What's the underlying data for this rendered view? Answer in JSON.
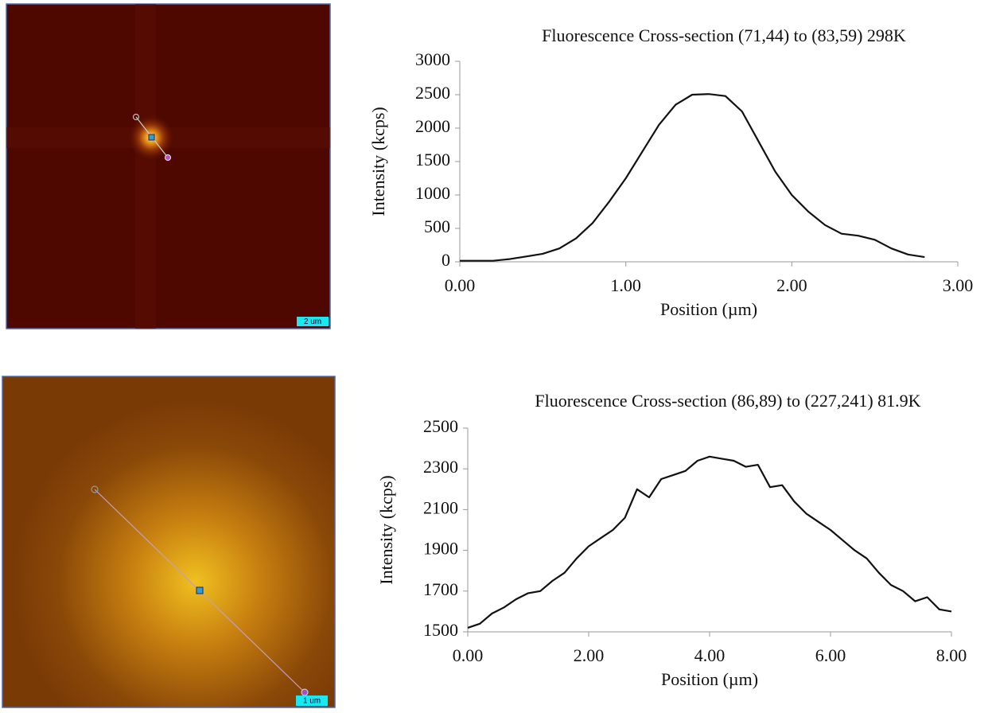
{
  "images": [
    {
      "scale_label": "2 um"
    },
    {
      "scale_label": "1 um"
    }
  ],
  "chart_data": [
    {
      "type": "line",
      "title": "Fluorescence Cross-section (71,44) to (83,59)  298K",
      "x_label": "Position  (µm)",
      "y_label": "Intensity  (kcps)",
      "x": [
        0,
        0.1,
        0.2,
        0.3,
        0.4,
        0.5,
        0.6,
        0.7,
        0.8,
        0.9,
        1.0,
        1.1,
        1.2,
        1.3,
        1.4,
        1.5,
        1.6,
        1.7,
        1.8,
        1.9,
        2.0,
        2.1,
        2.2,
        2.3,
        2.4,
        2.5,
        2.6,
        2.7,
        2.8
      ],
      "series": [
        {
          "name": "Intensity",
          "color": "#111111",
          "values": [
            15,
            15,
            15,
            40,
            80,
            120,
            200,
            350,
            580,
            900,
            1250,
            1650,
            2050,
            2350,
            2500,
            2510,
            2480,
            2250,
            1800,
            1350,
            1000,
            750,
            550,
            420,
            390,
            330,
            200,
            110,
            70
          ]
        }
      ],
      "xlim": [
        0,
        3
      ],
      "ylim": [
        0,
        3000
      ],
      "xticks": [
        {
          "value": 0,
          "label": "0.00"
        },
        {
          "value": 1,
          "label": "1.00"
        },
        {
          "value": 2,
          "label": "2.00"
        },
        {
          "value": 3,
          "label": "3.00"
        }
      ],
      "yticks": [
        0,
        500,
        1000,
        1500,
        2000,
        2500,
        3000
      ]
    },
    {
      "type": "line",
      "title": "Fluorescence Cross-section (86,89) to (227,241)  81.9K",
      "x_label": "Position  (µm)",
      "y_label": "Intensity  (kcps)",
      "x": [
        0,
        0.2,
        0.4,
        0.6,
        0.8,
        1.0,
        1.2,
        1.4,
        1.6,
        1.8,
        2.0,
        2.2,
        2.4,
        2.6,
        2.8,
        3.0,
        3.2,
        3.4,
        3.6,
        3.8,
        4.0,
        4.2,
        4.4,
        4.6,
        4.8,
        5.0,
        5.2,
        5.4,
        5.6,
        5.8,
        6.0,
        6.2,
        6.4,
        6.6,
        6.8,
        7.0,
        7.2,
        7.4,
        7.6,
        7.8,
        8.0
      ],
      "series": [
        {
          "name": "Intensity",
          "color": "#111111",
          "values": [
            1520,
            1540,
            1590,
            1620,
            1660,
            1690,
            1700,
            1750,
            1790,
            1860,
            1920,
            1960,
            2000,
            2060,
            2200,
            2160,
            2250,
            2270,
            2290,
            2340,
            2360,
            2350,
            2340,
            2310,
            2320,
            2210,
            2220,
            2140,
            2080,
            2040,
            2000,
            1950,
            1900,
            1860,
            1790,
            1730,
            1700,
            1650,
            1670,
            1610,
            1600
          ]
        }
      ],
      "xlim": [
        0,
        8
      ],
      "ylim": [
        1500,
        2500
      ],
      "xticks": [
        {
          "value": 0,
          "label": "0.00"
        },
        {
          "value": 2,
          "label": "2.00"
        },
        {
          "value": 4,
          "label": "4.00"
        },
        {
          "value": 6,
          "label": "6.00"
        },
        {
          "value": 8,
          "label": "8.00"
        }
      ],
      "yticks": [
        1500,
        1700,
        1900,
        2100,
        2300,
        2500
      ]
    }
  ]
}
